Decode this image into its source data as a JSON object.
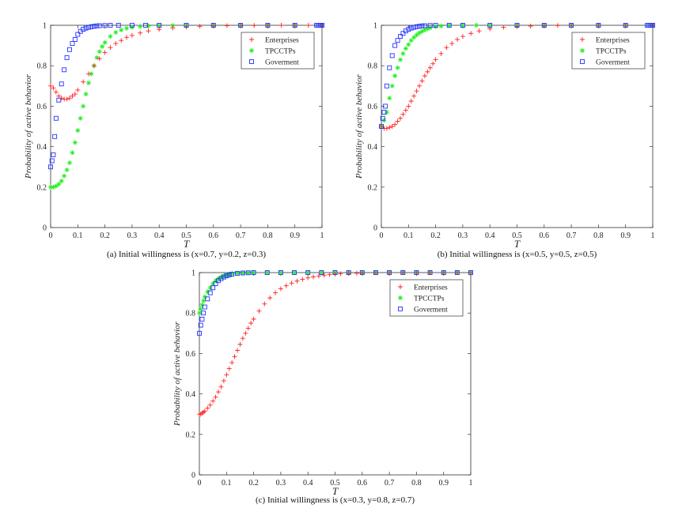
{
  "chart_data": [
    {
      "type": "scatter",
      "caption": "(a) Initial willingness is (x=0.7, y=0.2, z=0.3)",
      "xlabel": "T",
      "ylabel": "Probability of active behavior",
      "xlim": [
        0,
        1
      ],
      "ylim": [
        0,
        1
      ],
      "xticks": [
        "0",
        "0.1",
        "0.2",
        "0.3",
        "0.4",
        "0.5",
        "0.6",
        "0.7",
        "0.8",
        "0.9",
        "1"
      ],
      "yticks": [
        "0",
        "0.2",
        "0.4",
        "0.6",
        "0.8",
        "1"
      ],
      "legend_position": "top-right",
      "series": [
        {
          "name": "Enterprises",
          "marker": "plus",
          "color": "#ff2020",
          "x": [
            0,
            0.01,
            0.02,
            0.03,
            0.04,
            0.05,
            0.06,
            0.07,
            0.08,
            0.09,
            0.1,
            0.12,
            0.14,
            0.16,
            0.18,
            0.2,
            0.22,
            0.24,
            0.26,
            0.28,
            0.3,
            0.33,
            0.36,
            0.4,
            0.45,
            0.5,
            0.55,
            0.6,
            0.65,
            0.7,
            0.75,
            0.8,
            0.85,
            0.9,
            0.95,
            1.0
          ],
          "y": [
            0.7,
            0.69,
            0.67,
            0.65,
            0.64,
            0.635,
            0.635,
            0.64,
            0.65,
            0.66,
            0.68,
            0.72,
            0.76,
            0.8,
            0.835,
            0.865,
            0.89,
            0.91,
            0.925,
            0.94,
            0.95,
            0.962,
            0.972,
            0.98,
            0.987,
            0.992,
            0.995,
            0.997,
            0.998,
            0.999,
            0.999,
            1.0,
            1.0,
            1.0,
            1.0,
            1.0
          ]
        },
        {
          "name": "TPCCTPs",
          "marker": "star",
          "color": "#22ee22",
          "x": [
            0,
            0.01,
            0.02,
            0.03,
            0.04,
            0.05,
            0.06,
            0.07,
            0.08,
            0.09,
            0.1,
            0.11,
            0.12,
            0.13,
            0.14,
            0.15,
            0.16,
            0.17,
            0.18,
            0.19,
            0.2,
            0.22,
            0.24,
            0.26,
            0.28,
            0.3,
            0.33,
            0.36,
            0.4,
            0.45,
            0.5,
            0.6,
            0.7,
            0.8,
            0.9,
            1.0
          ],
          "y": [
            0.2,
            0.2,
            0.205,
            0.215,
            0.23,
            0.255,
            0.285,
            0.32,
            0.37,
            0.42,
            0.48,
            0.54,
            0.6,
            0.66,
            0.715,
            0.76,
            0.8,
            0.84,
            0.87,
            0.895,
            0.915,
            0.945,
            0.965,
            0.977,
            0.985,
            0.99,
            0.994,
            0.997,
            0.998,
            0.999,
            1.0,
            1.0,
            1.0,
            1.0,
            1.0,
            1.0
          ]
        },
        {
          "name": "Goverment",
          "marker": "square",
          "color": "#2233ff",
          "x": [
            0,
            0.005,
            0.01,
            0.015,
            0.02,
            0.03,
            0.04,
            0.05,
            0.06,
            0.07,
            0.08,
            0.09,
            0.1,
            0.11,
            0.12,
            0.13,
            0.14,
            0.15,
            0.16,
            0.17,
            0.18,
            0.2,
            0.22,
            0.25,
            0.3,
            0.35,
            0.4,
            0.5,
            0.6,
            0.7,
            0.8,
            0.9,
            0.98,
            0.985,
            0.99,
            0.995,
            1.0
          ],
          "y": [
            0.3,
            0.33,
            0.36,
            0.45,
            0.54,
            0.63,
            0.71,
            0.78,
            0.84,
            0.88,
            0.91,
            0.93,
            0.955,
            0.97,
            0.98,
            0.986,
            0.99,
            0.993,
            0.995,
            0.997,
            0.998,
            0.999,
            1.0,
            1.0,
            1.0,
            1.0,
            1.0,
            1.0,
            1.0,
            1.0,
            1.0,
            1.0,
            1.0,
            1.0,
            1.0,
            1.0,
            1.0
          ]
        }
      ]
    },
    {
      "type": "scatter",
      "caption": "(b) Initial willingness is (x=0.5, y=0.5, z=0.5)",
      "xlabel": "T",
      "ylabel": "Probability of active behavior",
      "xlim": [
        0,
        1
      ],
      "ylim": [
        0,
        1
      ],
      "xticks": [
        "0",
        "0.1",
        "0.2",
        "0.3",
        "0.4",
        "0.5",
        "0.6",
        "0.7",
        "0.8",
        "0.9",
        "1"
      ],
      "yticks": [
        "0",
        "0.2",
        "0.4",
        "0.6",
        "0.8",
        "1"
      ],
      "legend_position": "top-right",
      "series": [
        {
          "name": "Enterprises",
          "marker": "plus",
          "color": "#ff2020",
          "x": [
            0,
            0.01,
            0.02,
            0.03,
            0.04,
            0.05,
            0.06,
            0.07,
            0.08,
            0.09,
            0.1,
            0.11,
            0.12,
            0.13,
            0.14,
            0.15,
            0.16,
            0.17,
            0.18,
            0.19,
            0.2,
            0.22,
            0.24,
            0.26,
            0.28,
            0.3,
            0.33,
            0.36,
            0.4,
            0.45,
            0.5,
            0.55,
            0.6,
            0.65,
            0.7,
            0.8,
            0.9,
            1.0
          ],
          "y": [
            0.5,
            0.49,
            0.49,
            0.495,
            0.5,
            0.51,
            0.525,
            0.54,
            0.56,
            0.58,
            0.6,
            0.625,
            0.65,
            0.675,
            0.7,
            0.725,
            0.75,
            0.77,
            0.79,
            0.81,
            0.83,
            0.86,
            0.89,
            0.91,
            0.93,
            0.945,
            0.96,
            0.972,
            0.982,
            0.99,
            0.994,
            0.996,
            0.998,
            0.999,
            1.0,
            1.0,
            1.0,
            1.0
          ]
        },
        {
          "name": "TPCCTPs",
          "marker": "star",
          "color": "#22ee22",
          "x": [
            0,
            0.01,
            0.02,
            0.03,
            0.04,
            0.05,
            0.06,
            0.07,
            0.08,
            0.09,
            0.1,
            0.11,
            0.12,
            0.13,
            0.14,
            0.15,
            0.16,
            0.17,
            0.18,
            0.2,
            0.22,
            0.25,
            0.3,
            0.35,
            0.4,
            0.5,
            0.6,
            0.7,
            0.8,
            0.9,
            1.0
          ],
          "y": [
            0.5,
            0.53,
            0.57,
            0.64,
            0.7,
            0.75,
            0.79,
            0.83,
            0.86,
            0.885,
            0.905,
            0.925,
            0.94,
            0.952,
            0.962,
            0.97,
            0.977,
            0.983,
            0.987,
            0.993,
            0.996,
            0.999,
            1.0,
            1.0,
            1.0,
            1.0,
            1.0,
            1.0,
            1.0,
            1.0,
            1.0
          ]
        },
        {
          "name": "Goverment",
          "marker": "square",
          "color": "#2233ff",
          "x": [
            0,
            0.005,
            0.01,
            0.015,
            0.02,
            0.03,
            0.04,
            0.05,
            0.06,
            0.07,
            0.08,
            0.09,
            0.1,
            0.11,
            0.12,
            0.13,
            0.14,
            0.15,
            0.16,
            0.18,
            0.2,
            0.25,
            0.3,
            0.4,
            0.5,
            0.6,
            0.7,
            0.8,
            0.9,
            0.98,
            0.985,
            0.99,
            0.995,
            1.0
          ],
          "y": [
            0.5,
            0.54,
            0.57,
            0.6,
            0.7,
            0.79,
            0.85,
            0.9,
            0.925,
            0.945,
            0.96,
            0.972,
            0.98,
            0.986,
            0.99,
            0.993,
            0.995,
            0.997,
            0.998,
            0.999,
            1.0,
            1.0,
            1.0,
            1.0,
            1.0,
            1.0,
            1.0,
            1.0,
            1.0,
            1.0,
            1.0,
            1.0,
            1.0,
            1.0
          ]
        }
      ]
    },
    {
      "type": "scatter",
      "caption": "(c) Initial willingness is (x=0.3, y=0.8, z=0.7)",
      "xlabel": "T",
      "ylabel": "Probability of active behavior",
      "xlim": [
        0,
        1
      ],
      "ylim": [
        0,
        1
      ],
      "xticks": [
        "0",
        "0.1",
        "0.2",
        "0.3",
        "0.4",
        "0.5",
        "0.6",
        "0.7",
        "0.8",
        "0.9",
        "1"
      ],
      "yticks": [
        "0",
        "0.2",
        "0.4",
        "0.6",
        "0.8",
        "1"
      ],
      "legend_position": "top-right",
      "series": [
        {
          "name": "Enterprises",
          "marker": "plus",
          "color": "#ff2020",
          "x": [
            0,
            0.005,
            0.01,
            0.015,
            0.02,
            0.03,
            0.04,
            0.05,
            0.06,
            0.07,
            0.08,
            0.09,
            0.1,
            0.11,
            0.12,
            0.13,
            0.14,
            0.15,
            0.16,
            0.17,
            0.18,
            0.19,
            0.2,
            0.22,
            0.24,
            0.26,
            0.28,
            0.3,
            0.32,
            0.34,
            0.36,
            0.38,
            0.4,
            0.42,
            0.44,
            0.46,
            0.48,
            0.5,
            0.52,
            0.55,
            0.58,
            0.6,
            0.65,
            0.7,
            0.75,
            0.8,
            0.85,
            0.9,
            0.95,
            1.0
          ],
          "y": [
            0.3,
            0.3,
            0.305,
            0.31,
            0.315,
            0.33,
            0.345,
            0.365,
            0.385,
            0.41,
            0.435,
            0.465,
            0.495,
            0.525,
            0.555,
            0.585,
            0.615,
            0.645,
            0.675,
            0.7,
            0.725,
            0.75,
            0.77,
            0.81,
            0.845,
            0.875,
            0.9,
            0.92,
            0.935,
            0.948,
            0.958,
            0.967,
            0.974,
            0.979,
            0.983,
            0.987,
            0.99,
            0.992,
            0.994,
            0.996,
            0.997,
            0.998,
            0.999,
            1.0,
            1.0,
            1.0,
            1.0,
            1.0,
            1.0,
            1.0
          ]
        },
        {
          "name": "TPCCTPs",
          "marker": "star",
          "color": "#22ee22",
          "x": [
            0,
            0.005,
            0.01,
            0.015,
            0.02,
            0.03,
            0.04,
            0.05,
            0.06,
            0.07,
            0.08,
            0.09,
            0.1,
            0.11,
            0.12,
            0.14,
            0.16,
            0.18,
            0.2,
            0.25,
            0.3,
            0.35,
            0.4,
            0.45,
            0.5,
            0.55,
            0.6,
            0.65,
            0.7,
            0.75,
            0.8,
            0.85,
            0.9,
            0.95,
            1.0
          ],
          "y": [
            0.8,
            0.82,
            0.84,
            0.86,
            0.88,
            0.905,
            0.925,
            0.945,
            0.96,
            0.97,
            0.978,
            0.984,
            0.989,
            0.992,
            0.995,
            0.997,
            0.998,
            0.999,
            1.0,
            1.0,
            1.0,
            1.0,
            1.0,
            1.0,
            1.0,
            1.0,
            1.0,
            1.0,
            1.0,
            1.0,
            1.0,
            1.0,
            1.0,
            1.0,
            1.0
          ]
        },
        {
          "name": "Goverment",
          "marker": "square",
          "color": "#2233ff",
          "x": [
            0,
            0.005,
            0.01,
            0.015,
            0.02,
            0.03,
            0.04,
            0.05,
            0.06,
            0.07,
            0.08,
            0.09,
            0.1,
            0.11,
            0.12,
            0.14,
            0.16,
            0.18,
            0.2,
            0.25,
            0.3,
            0.35,
            0.4,
            0.45,
            0.5,
            0.55,
            0.6,
            0.65,
            0.7,
            0.75,
            0.8,
            0.85,
            0.9,
            0.95,
            1.0
          ],
          "y": [
            0.7,
            0.74,
            0.77,
            0.8,
            0.83,
            0.87,
            0.9,
            0.925,
            0.945,
            0.96,
            0.97,
            0.978,
            0.984,
            0.989,
            0.992,
            0.996,
            0.998,
            0.999,
            1.0,
            1.0,
            1.0,
            1.0,
            1.0,
            1.0,
            1.0,
            1.0,
            1.0,
            1.0,
            1.0,
            1.0,
            1.0,
            1.0,
            1.0,
            1.0,
            1.0
          ]
        }
      ]
    }
  ]
}
